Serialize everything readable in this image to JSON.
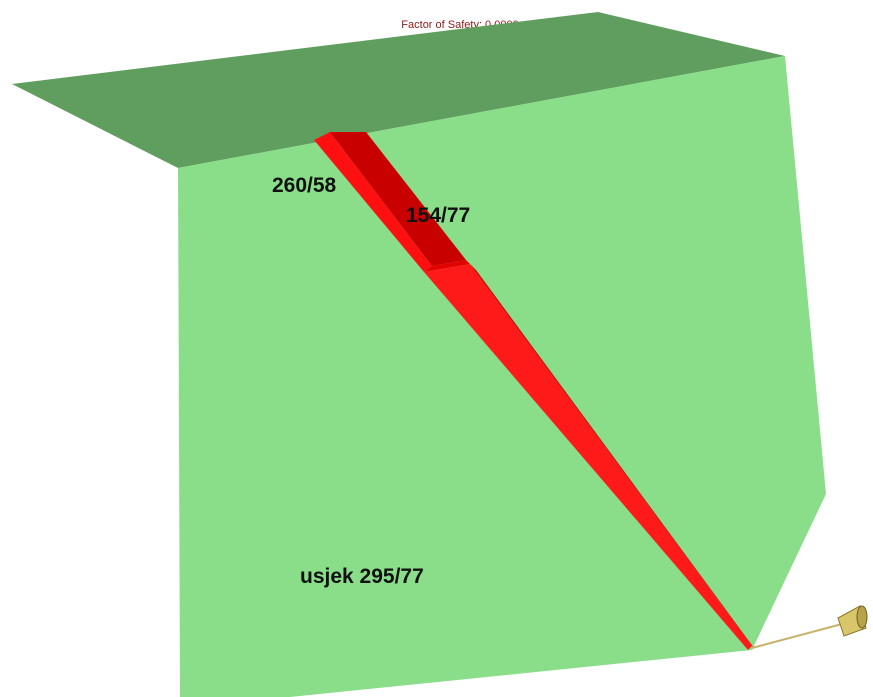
{
  "header": {
    "factor_of_safety": "Factor of Safety: 0.0000"
  },
  "labels": {
    "joint_1": "260/58",
    "joint_2": "154/77",
    "slope_face": "usjek 295/77"
  },
  "colors": {
    "crest_top": "#5f9e5f",
    "slope_face": "#8ade8a",
    "wedge_light": "#ff1010",
    "wedge_dark": "#c80000",
    "wedge_mid": "#e50000",
    "arrow_shaft": "#c8b26a",
    "arrow_head": "#d9c56a"
  },
  "icons": {
    "direction_arrow": "arrow-icon"
  }
}
